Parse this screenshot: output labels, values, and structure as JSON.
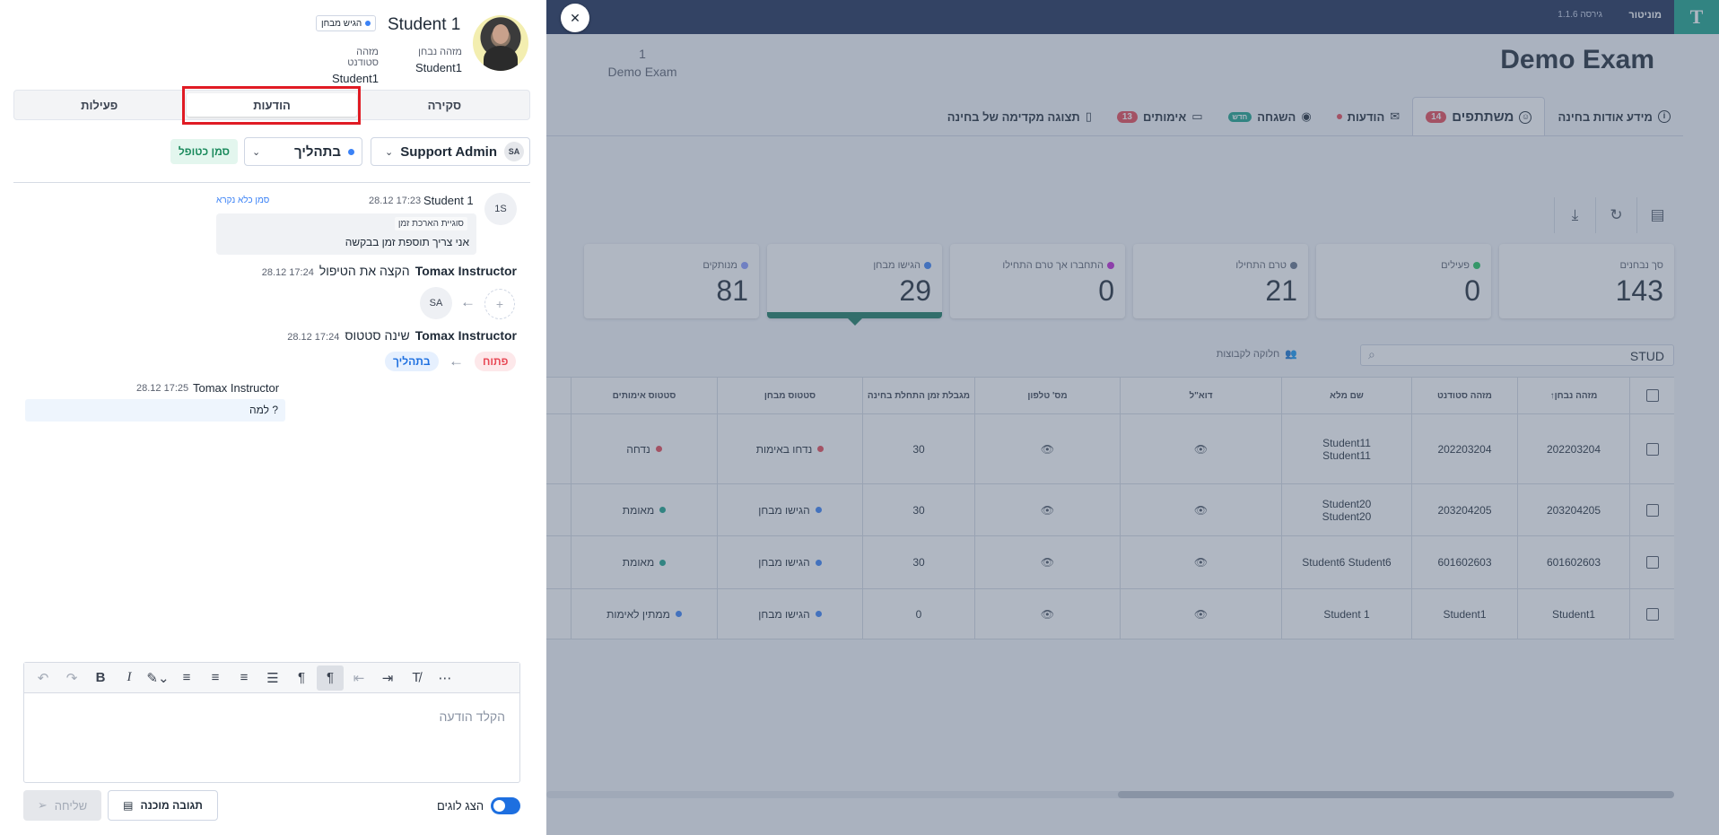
{
  "topbar": {
    "brand": "מוניטור",
    "version": "גירסה 1.1.6",
    "logo": "T"
  },
  "exam": {
    "title": "Demo Exam",
    "count": "1",
    "subtitle": "Demo Exam"
  },
  "main_tabs": [
    {
      "label": "מידע אודות בחינה",
      "icon": "info-icon"
    },
    {
      "label": "משתתפים",
      "badge": "14",
      "icon": "users-icon",
      "active": true
    },
    {
      "label": "הודעות",
      "icon": "chat-icon",
      "dot": true
    },
    {
      "label": "השגחה",
      "icon": "eye-icon",
      "badge": "חדש"
    },
    {
      "label": "אימותים",
      "badge": "13",
      "icon": "id-card-icon"
    },
    {
      "label": "תצוגה מקדימה של בחינה",
      "icon": "file-icon"
    }
  ],
  "toolbar_icons": [
    "export-icon",
    "refresh-icon",
    "download-icon"
  ],
  "stat_cards": [
    {
      "label": "סך נבחנים",
      "value": "143",
      "color": ""
    },
    {
      "label": "פעילים",
      "value": "0",
      "color": "#22c55e"
    },
    {
      "label": "טרם התחילו",
      "value": "21",
      "color": "#64748b"
    },
    {
      "label": "התחברו אך טרם התחילו",
      "value": "0",
      "color": "#c026d3"
    },
    {
      "label": "הגישו מבחן",
      "value": "29",
      "color": "#3b82f6",
      "selected": true
    },
    {
      "label": "מנותקים",
      "value": "81",
      "color": "#8b9cff"
    }
  ],
  "search": {
    "value": "STUD",
    "groups_label": "חלוקה לקבוצות"
  },
  "table": {
    "headers": [
      "מזהה נבחן",
      "מזהה סטודנט",
      "שם מלא",
      "דוא\"ל",
      "מס' טלפון",
      "מגבלת זמן התחלת בחינה",
      "סטטוס מבחן",
      "סטטוס אימותים"
    ],
    "rows": [
      {
        "exam_id": "202203204",
        "student_id": "202203204",
        "name": "Student11 Student11",
        "time_limit": "30",
        "exam_status": "נדחו באימות",
        "exam_status_color": "#e84855",
        "verify_status": "נדחה",
        "verify_color": "#e84855"
      },
      {
        "exam_id": "203204205",
        "student_id": "203204205",
        "name": "Student20 Student20",
        "time_limit": "30",
        "exam_status": "הגישו מבחן",
        "exam_status_color": "#3b82f6",
        "verify_status": "מאומת",
        "verify_color": "#1aa38a"
      },
      {
        "exam_id": "601602603",
        "student_id": "601602603",
        "name": "Student6 Student6",
        "time_limit": "30",
        "exam_status": "הגישו מבחן",
        "exam_status_color": "#3b82f6",
        "verify_status": "מאומת",
        "verify_color": "#1aa38a"
      },
      {
        "exam_id": "Student1",
        "student_id": "Student1",
        "name": "Student 1",
        "time_limit": "0",
        "exam_status": "הגישו מבחן",
        "exam_status_color": "#3b82f6",
        "verify_status": "ממתין לאימות",
        "verify_color": "#3b82f6"
      }
    ]
  },
  "drawer": {
    "student_name": "Student 1",
    "exam_badge": "הגיש מבחן",
    "exam_id_label": "מזהה נבחן",
    "exam_id_value": "Student1",
    "student_id_label": "מזהה סטודנט",
    "student_id_value": "Student1",
    "tabs": [
      "סקירה",
      "הודעות",
      "פעילות"
    ],
    "assignee_initials": "SA",
    "assignee_name": "Support Admin",
    "state": "בתהליך",
    "duplicate_label": "סמן כטופל",
    "message": {
      "initials": "1S",
      "author": "Student 1",
      "time": "28.12 17:23",
      "mark_unread": "סמן כלא נקרא",
      "tag": "סוגיית הארכת זמן",
      "text": "אני צריך תוספת זמן בבקשה"
    },
    "event1": {
      "who": "Tomax Instructor",
      "what": "הקצה את הטיפול",
      "time": "28.12 17:24",
      "to_initials": "SA"
    },
    "event2": {
      "who": "Tomax Instructor",
      "what": "שינה סטטוס",
      "time": "28.12 17:24",
      "from": "פתוח",
      "to": "בתהליך"
    },
    "reply": {
      "author": "Tomax Instructor",
      "time": "28.12 17:25",
      "text": "למה ?"
    },
    "editor": {
      "placeholder": "הקלד הודעה"
    },
    "send_label": "שליחה",
    "ready_label": "תגובה מוכנה",
    "toggle_label": "הצג לוגים"
  },
  "colors": {
    "accent": "#1aa38a",
    "navy": "#1c2d55",
    "highlight": "#e01b24",
    "blue": "#3b82f6"
  }
}
